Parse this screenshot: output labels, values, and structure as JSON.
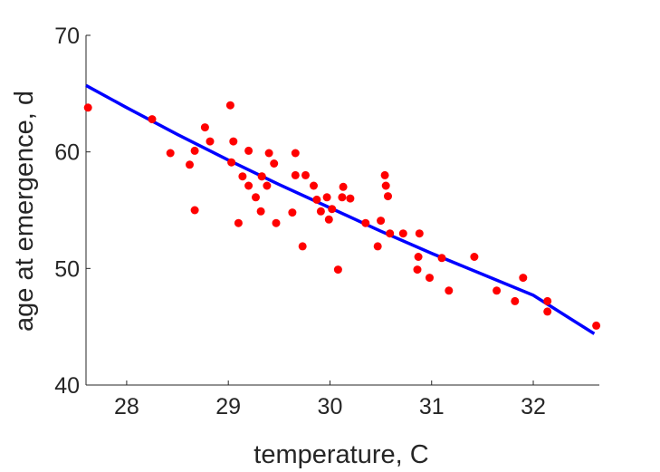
{
  "chart_data": {
    "type": "scatter",
    "title": "",
    "xlabel": "temperature, C",
    "ylabel": "age at emergence, d",
    "xlim": [
      27.6,
      32.65
    ],
    "ylim": [
      40,
      70
    ],
    "xticks": [
      28,
      29,
      30,
      31,
      32
    ],
    "yticks": [
      40,
      50,
      60,
      70
    ],
    "grid": false,
    "colors": {
      "points": "#ff0000",
      "fit": "#0000ff",
      "axis": "#262626"
    },
    "series": [
      {
        "type": "scatter",
        "x": [
          27.62,
          28.25,
          28.43,
          28.62,
          28.67,
          28.67,
          28.77,
          28.82,
          29.02,
          29.03,
          29.05,
          29.1,
          29.14,
          29.2,
          29.2,
          29.27,
          29.32,
          29.33,
          29.33,
          29.38,
          29.4,
          29.45,
          29.47,
          29.63,
          29.66,
          29.66,
          29.73,
          29.76,
          29.84,
          29.87,
          29.91,
          29.97,
          29.99,
          30.02,
          30.08,
          30.12,
          30.13,
          30.2,
          30.35,
          30.47,
          30.5,
          30.54,
          30.55,
          30.57,
          30.59,
          30.72,
          30.86,
          30.87,
          30.88,
          30.98,
          31.1,
          31.17,
          31.42,
          31.64,
          31.82,
          31.9,
          32.14,
          32.14,
          32.62
        ],
        "y": [
          63.8,
          62.8,
          59.9,
          58.9,
          55.0,
          60.1,
          62.1,
          60.9,
          64.0,
          59.1,
          60.9,
          53.9,
          57.9,
          57.1,
          60.1,
          56.1,
          54.9,
          57.9,
          57.9,
          57.1,
          59.9,
          59.0,
          53.9,
          54.8,
          59.9,
          58.0,
          51.9,
          58.0,
          57.1,
          55.9,
          54.9,
          56.1,
          54.2,
          55.1,
          49.9,
          56.1,
          57.0,
          56.0,
          53.9,
          51.9,
          54.1,
          58.0,
          57.1,
          56.2,
          53.0,
          53.0,
          49.9,
          51.0,
          53.0,
          49.2,
          50.9,
          48.1,
          51.0,
          48.1,
          47.2,
          49.2,
          47.2,
          46.3,
          45.1
        ]
      },
      {
        "type": "line",
        "x": [
          27.6,
          28.0,
          28.5,
          29.0,
          29.5,
          30.0,
          30.5,
          31.0,
          31.5,
          32.0,
          32.6
        ],
        "y": [
          65.7,
          63.8,
          61.5,
          59.3,
          57.2,
          55.2,
          53.2,
          51.3,
          49.5,
          47.7,
          44.4
        ]
      }
    ]
  }
}
